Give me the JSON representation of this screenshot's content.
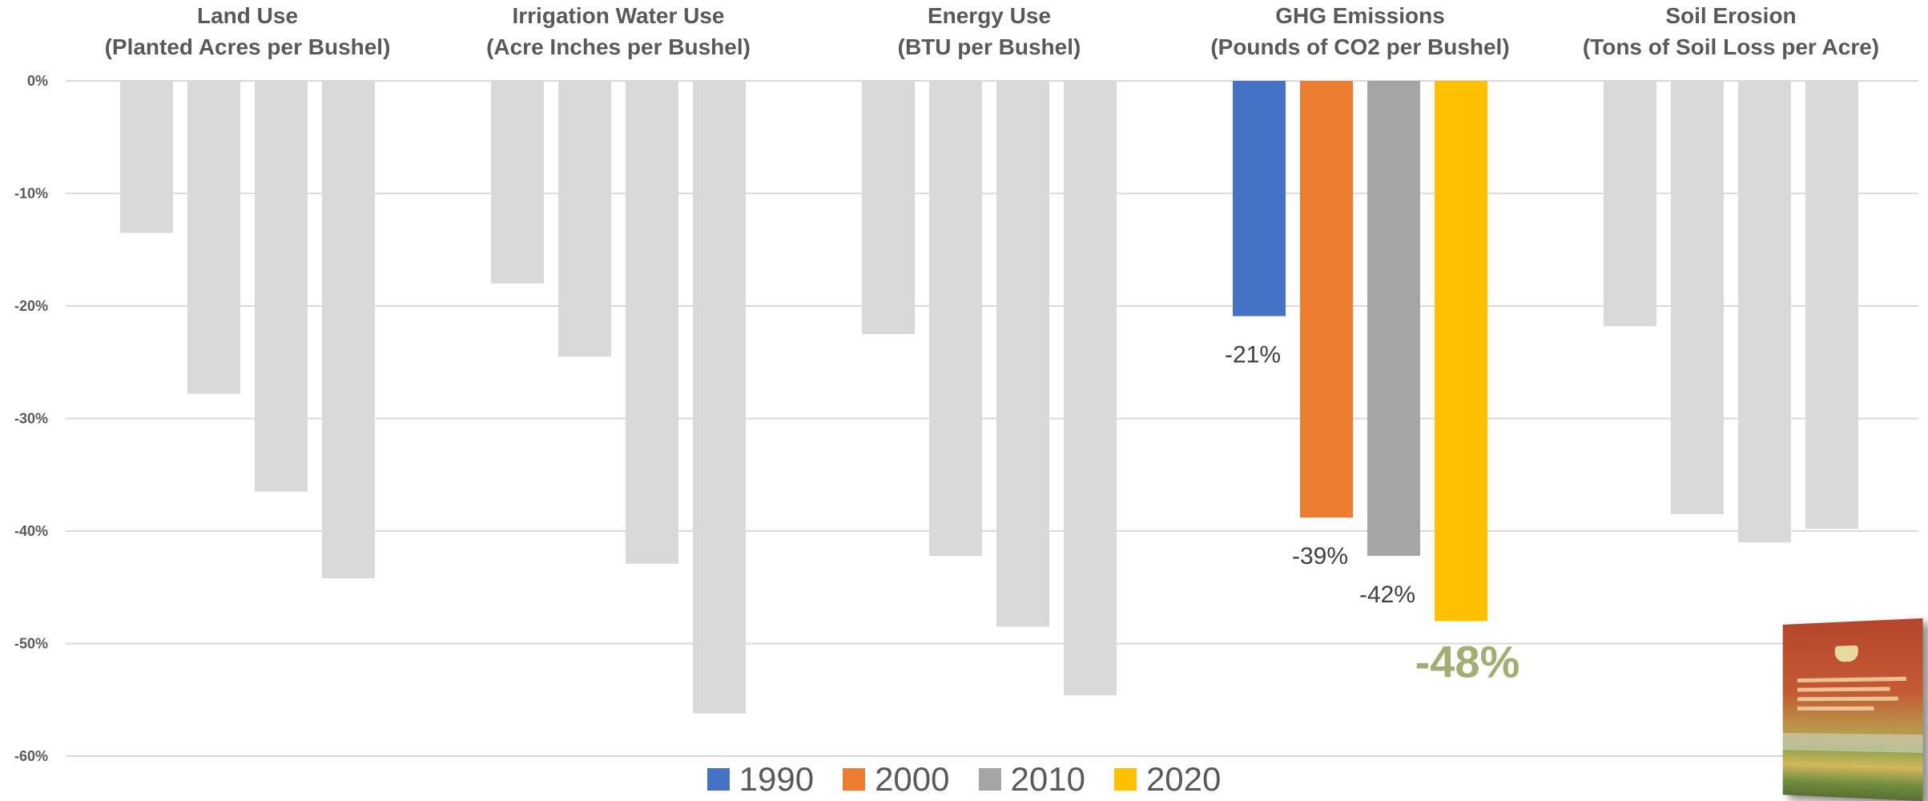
{
  "chart_data": {
    "type": "bar",
    "ylim": [
      -60,
      0
    ],
    "yticks": [
      "0%",
      "-10%",
      "-20%",
      "-30%",
      "-40%",
      "-50%",
      "-60%"
    ],
    "grid": true,
    "legend_position": "bottom",
    "series_colors": [
      "#4472c4",
      "#ed7d31",
      "#a5a5a5",
      "#ffc000"
    ],
    "muted_color": "#d9d9d9",
    "highlight_panel": 3,
    "legend": [
      {
        "label": "1990",
        "color": "#4472c4"
      },
      {
        "label": "2000",
        "color": "#ed7d31"
      },
      {
        "label": "2010",
        "color": "#a5a5a5"
      },
      {
        "label": "2020",
        "color": "#ffc000"
      }
    ],
    "panels": [
      {
        "title1": "Land Use",
        "title2": "(Planted Acres per Bushel)",
        "values": [
          -13.5,
          -27.8,
          -36.5,
          -44.2
        ]
      },
      {
        "title1": "Irrigation Water Use",
        "title2": "(Acre Inches per Bushel)",
        "values": [
          -18.0,
          -24.5,
          -42.9,
          -56.2
        ]
      },
      {
        "title1": "Energy Use",
        "title2": "(BTU per Bushel)",
        "values": [
          -22.5,
          -42.2,
          -48.5,
          -54.6
        ]
      },
      {
        "title1": "GHG Emissions",
        "title2": "(Pounds of CO2 per Bushel)",
        "values": [
          -20.9,
          -38.8,
          -42.2,
          -48.0
        ],
        "labels": [
          "-21%",
          "-39%",
          "-42%",
          "-48%"
        ]
      },
      {
        "title1": "Soil Erosion",
        "title2": "(Tons of Soil Loss per Acre)",
        "values": [
          -21.8,
          -38.5,
          -41.0,
          -39.8
        ]
      }
    ]
  },
  "report_cover": {
    "icon": "report-cover-thumbnail"
  }
}
